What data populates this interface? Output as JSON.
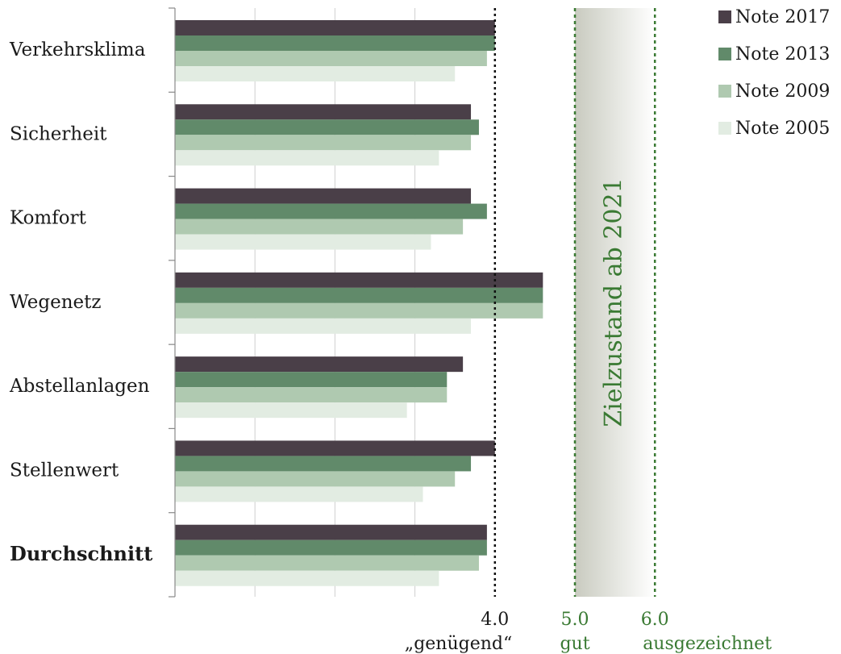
{
  "chart_data": {
    "type": "bar",
    "orientation": "horizontal",
    "categories": [
      "Verkehrsklima",
      "Sicherheit",
      "Komfort",
      "Wegenetz",
      "Abstellanlagen",
      "Stellenwert",
      "Durchschnitt"
    ],
    "series": [
      {
        "name": "Note 2017",
        "color": "#4a3f48",
        "values": [
          4.0,
          3.7,
          3.7,
          4.6,
          3.6,
          4.0,
          3.9
        ]
      },
      {
        "name": "Note 2013",
        "color": "#618a6a",
        "values": [
          4.0,
          3.8,
          3.9,
          4.6,
          3.4,
          3.7,
          3.9
        ]
      },
      {
        "name": "Note 2009",
        "color": "#afc9b0",
        "values": [
          3.9,
          3.7,
          3.6,
          4.6,
          3.4,
          3.5,
          3.8
        ]
      },
      {
        "name": "Note 2005",
        "color": "#e2ece2",
        "values": [
          3.5,
          3.3,
          3.2,
          3.7,
          2.9,
          3.1,
          3.3
        ]
      }
    ],
    "xlim": [
      0,
      6
    ],
    "x_ticks": [
      {
        "value": 4.0,
        "label": "4.0",
        "sublabel": "„genügend“",
        "color": "#1a1a1a"
      },
      {
        "value": 5.0,
        "label": "5.0",
        "sublabel": "gut",
        "color": "#3a7a33"
      },
      {
        "value": 6.0,
        "label": "6.0",
        "sublabel": "ausgezeichnet",
        "color": "#3a7a33"
      }
    ],
    "reference_line": {
      "value": 4.0,
      "style": "dotted",
      "color": "#111111"
    },
    "target_zone": {
      "from": 5.0,
      "to": 6.0,
      "label": "Zielzustand ab 2021",
      "color": "#3a7a33"
    },
    "bold_categories": [
      "Durchschnitt"
    ],
    "grid": "vertical",
    "legend_position": "top-right"
  }
}
